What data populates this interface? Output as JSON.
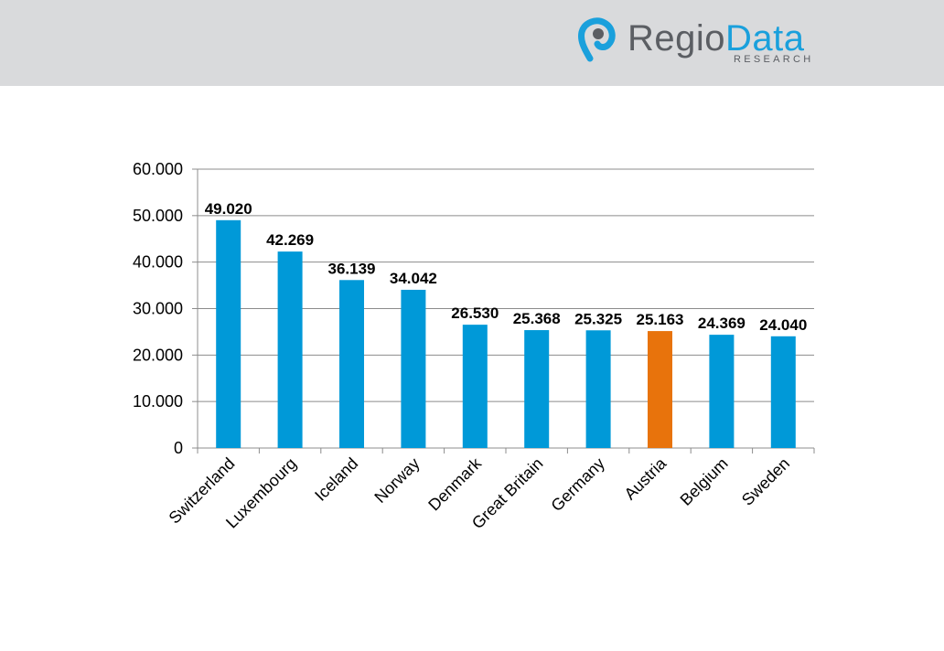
{
  "brand": {
    "name_part1": "Regio",
    "name_part2": "Data",
    "tagline": "RESEARCH",
    "colors": {
      "grey": "#5b5e63",
      "blue": "#1aa0dc"
    }
  },
  "chart_data": {
    "type": "bar",
    "categories": [
      "Switzerland",
      "Luxembourg",
      "Iceland",
      "Norway",
      "Denmark",
      "Great Britain",
      "Germany",
      "Austria",
      "Belgium",
      "Sweden"
    ],
    "values": [
      49020,
      42269,
      36139,
      34042,
      26530,
      25368,
      25325,
      25163,
      24369,
      24040
    ],
    "value_labels": [
      "49.020",
      "42.269",
      "36.139",
      "34.042",
      "26.530",
      "25.368",
      "25.325",
      "25.163",
      "24.369",
      "24.040"
    ],
    "ylim": [
      0,
      60000
    ],
    "yticks": [
      0,
      10000,
      20000,
      30000,
      40000,
      50000,
      60000
    ],
    "ytick_labels": [
      "0",
      "10.000",
      "20.000",
      "30.000",
      "40.000",
      "50.000",
      "60.000"
    ],
    "grid": true,
    "legend": "none",
    "bar_color": "#0099d8",
    "highlight_color": "#e8730c",
    "highlight_category": "Austria"
  }
}
